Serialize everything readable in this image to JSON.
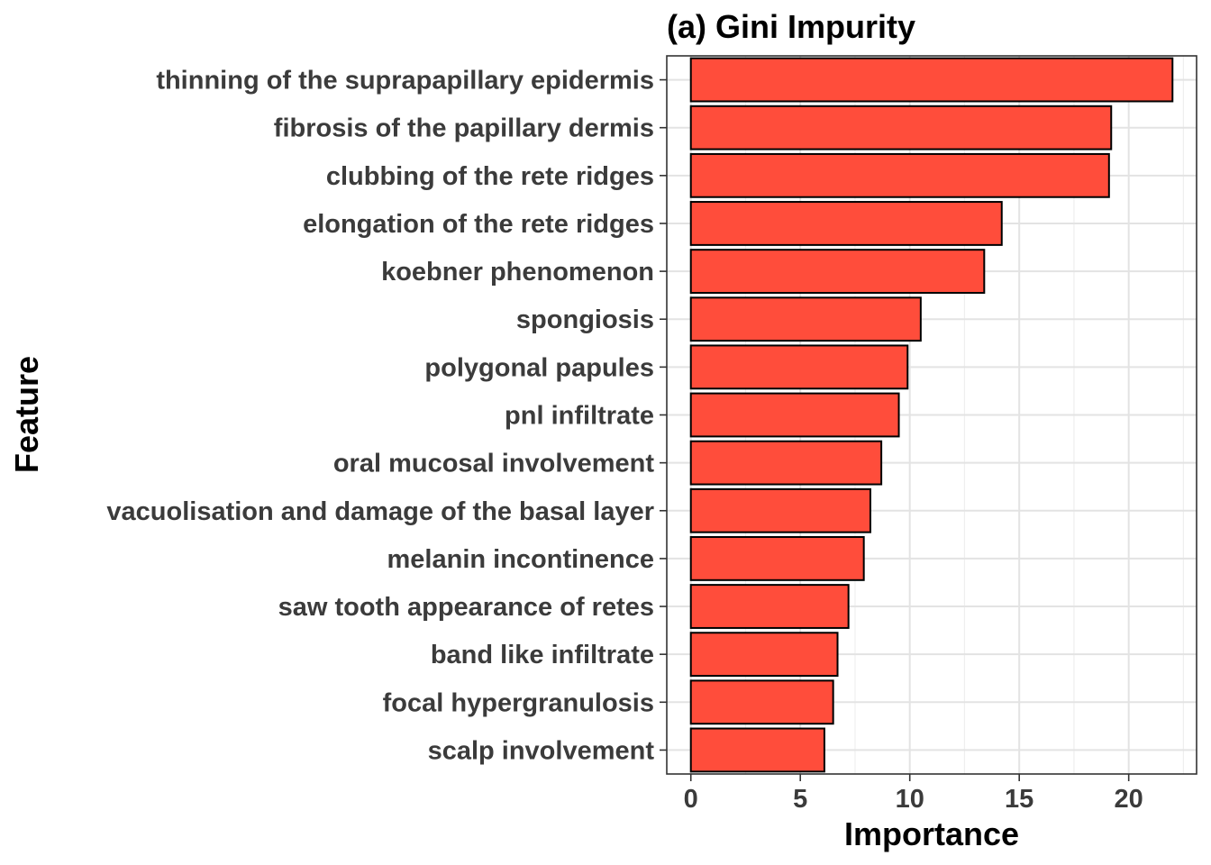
{
  "chart_data": {
    "type": "bar",
    "orientation": "horizontal",
    "title": "(a) Gini Impurity",
    "xlabel": "Importance",
    "ylabel": "Feature",
    "xlim": [
      -1.1,
      23.1
    ],
    "xticks": [
      0,
      5,
      10,
      15,
      20
    ],
    "grid": true,
    "bar_color": "#FF4D3B",
    "bar_edge_color": "#000000",
    "categories": [
      "thinning of the suprapapillary epidermis",
      "fibrosis of the papillary dermis",
      "clubbing of the rete ridges",
      "elongation of the rete ridges",
      "koebner phenomenon",
      "spongiosis",
      "polygonal papules",
      "pnl infiltrate",
      "oral mucosal involvement",
      "vacuolisation and damage of the basal layer",
      "melanin incontinence",
      "saw tooth appearance of retes",
      "band like infiltrate",
      "focal hypergranulosis",
      "scalp involvement"
    ],
    "values": [
      22.0,
      19.2,
      19.1,
      14.2,
      13.4,
      10.5,
      9.9,
      9.5,
      8.7,
      8.2,
      7.9,
      7.2,
      6.7,
      6.5,
      6.1
    ]
  }
}
